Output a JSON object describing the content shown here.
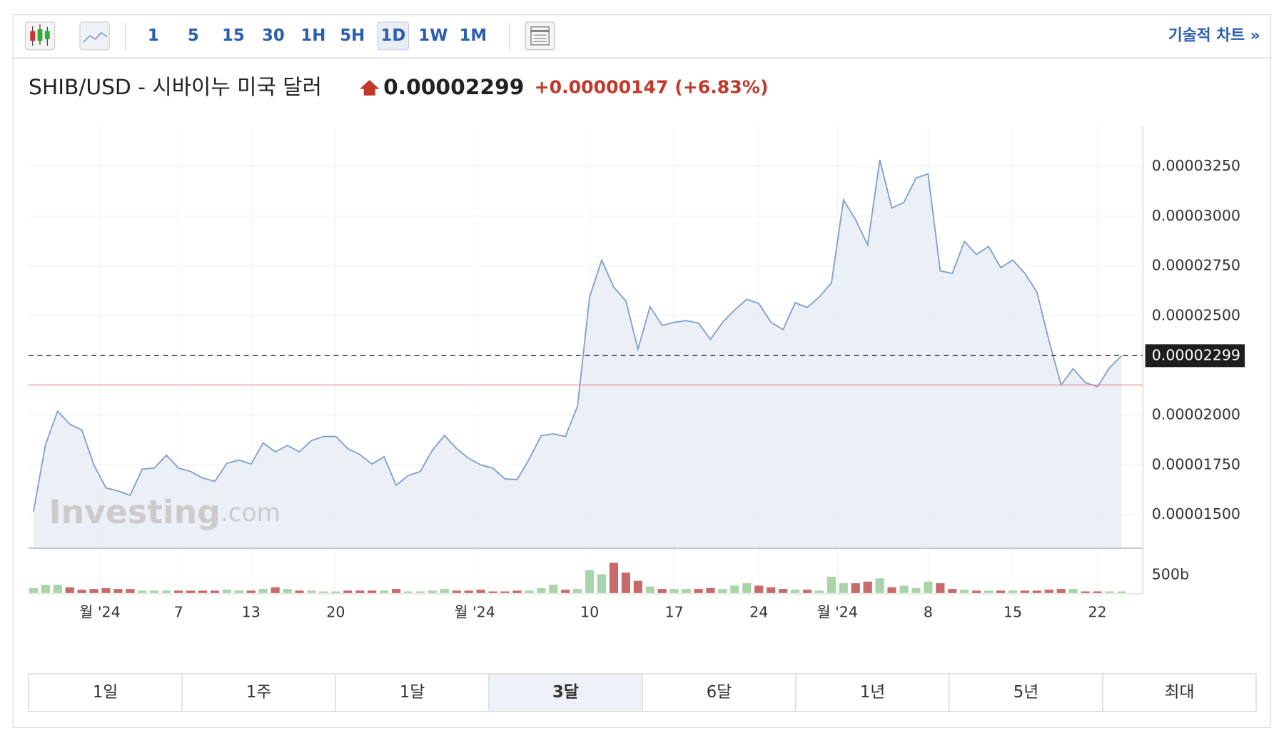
{
  "toolbar": {
    "intervals": [
      {
        "label": "1"
      },
      {
        "label": "5"
      },
      {
        "label": "15"
      },
      {
        "label": "30"
      },
      {
        "label": "1H"
      },
      {
        "label": "5H"
      },
      {
        "label": "1D",
        "active": true
      },
      {
        "label": "1W"
      },
      {
        "label": "1M"
      }
    ],
    "technical_link": "기술적 차트 »"
  },
  "header": {
    "name": "SHIB/USD - 시바이누 미국 달러",
    "price": "0.00002299",
    "change": "+0.00000147",
    "change_pct": "(+6.83%)"
  },
  "watermark": {
    "brand": "Investing",
    "suffix": ".com"
  },
  "chart_data": {
    "type": "area",
    "color": "#7f9fcf",
    "fill": "#e9edf5",
    "values": [
      1.516e-05,
      1.852e-05,
      2.02e-05,
      1.955e-05,
      1.926e-05,
      1.75e-05,
      1.635e-05,
      1.619e-05,
      1.598e-05,
      1.729e-05,
      1.734e-05,
      1.799e-05,
      1.734e-05,
      1.717e-05,
      1.684e-05,
      1.668e-05,
      1.758e-05,
      1.775e-05,
      1.754e-05,
      1.861e-05,
      1.816e-05,
      1.848e-05,
      1.816e-05,
      1.873e-05,
      1.893e-05,
      1.893e-05,
      1.832e-05,
      1.803e-05,
      1.754e-05,
      1.791e-05,
      1.648e-05,
      1.697e-05,
      1.717e-05,
      1.824e-05,
      1.898e-05,
      1.832e-05,
      1.783e-05,
      1.75e-05,
      1.734e-05,
      1.68e-05,
      1.676e-05,
      1.779e-05,
      1.898e-05,
      1.906e-05,
      1.893e-05,
      2.045e-05,
      2.594e-05,
      2.779e-05,
      2.643e-05,
      2.574e-05,
      2.332e-05,
      2.545e-05,
      2.451e-05,
      2.467e-05,
      2.475e-05,
      2.463e-05,
      2.381e-05,
      2.467e-05,
      2.529e-05,
      2.582e-05,
      2.561e-05,
      2.467e-05,
      2.43e-05,
      2.565e-05,
      2.541e-05,
      2.594e-05,
      2.664e-05,
      3.082e-05,
      2.983e-05,
      2.856e-05,
      3.283e-05,
      3.041e-05,
      3.07e-05,
      3.192e-05,
      3.213e-05,
      2.725e-05,
      2.713e-05,
      2.873e-05,
      2.807e-05,
      2.848e-05,
      2.742e-05,
      2.779e-05,
      2.713e-05,
      2.619e-05,
      2.373e-05,
      2.152e-05,
      2.234e-05,
      2.164e-05,
      2.143e-05,
      2.238e-05,
      2.299e-05
    ],
    "xlim": [
      -0.4,
      91.8
    ],
    "xticks": [
      {
        "value": 5.5,
        "label": "월 '24"
      },
      {
        "value": 12,
        "label": "7"
      },
      {
        "value": 18,
        "label": "13"
      },
      {
        "value": 25,
        "label": "20"
      },
      {
        "value": 36.5,
        "label": "월 '24"
      },
      {
        "value": 46,
        "label": "10"
      },
      {
        "value": 53,
        "label": "17"
      },
      {
        "value": 60,
        "label": "24"
      },
      {
        "value": 66.5,
        "label": "월 '24"
      },
      {
        "value": 74,
        "label": "8"
      },
      {
        "value": 81,
        "label": "15"
      },
      {
        "value": 88,
        "label": "22"
      }
    ],
    "ylim": [
      1.336e-05,
      3.451e-05
    ],
    "yticks": [
      {
        "value": 1.5e-05,
        "label": "0.00001500"
      },
      {
        "value": 1.75e-05,
        "label": "0.00001750"
      },
      {
        "value": 2e-05,
        "label": "0.00002000"
      },
      {
        "value": 2.5e-05,
        "label": "0.00002500"
      },
      {
        "value": 2.75e-05,
        "label": "0.00002750"
      },
      {
        "value": 3e-05,
        "label": "0.00003000"
      },
      {
        "value": 3.25e-05,
        "label": "0.00003250"
      }
    ],
    "grid": true,
    "reference_line": {
      "value": 2.152e-05,
      "color": "#e88080"
    },
    "volume": {
      "values": [
        136,
        227,
        227,
        159,
        91,
        114,
        136,
        114,
        114,
        68,
        68,
        68,
        68,
        68,
        68,
        68,
        91,
        68,
        68,
        114,
        159,
        114,
        68,
        68,
        45,
        45,
        68,
        68,
        68,
        68,
        114,
        45,
        45,
        68,
        114,
        68,
        68,
        91,
        45,
        45,
        68,
        68,
        136,
        227,
        91,
        114,
        636,
        523,
        841,
        568,
        341,
        182,
        114,
        114,
        114,
        114,
        136,
        114,
        205,
        273,
        205,
        159,
        114,
        91,
        91,
        68,
        455,
        273,
        273,
        318,
        409,
        159,
        205,
        136,
        318,
        273,
        114,
        91,
        68,
        68,
        68,
        68,
        68,
        68,
        91,
        114,
        114,
        45,
        45,
        45,
        45
      ],
      "ylim": [
        0,
        1250
      ],
      "yticks": [
        {
          "value": 500,
          "label": "500b"
        }
      ],
      "up_color": "#a9d3a9",
      "down_color": "#c76a6a"
    }
  },
  "ranges": [
    {
      "label": "1일"
    },
    {
      "label": "1주"
    },
    {
      "label": "1달"
    },
    {
      "label": "3달",
      "active": true
    },
    {
      "label": "6달"
    },
    {
      "label": "1년"
    },
    {
      "label": "5년"
    },
    {
      "label": "최대"
    }
  ]
}
